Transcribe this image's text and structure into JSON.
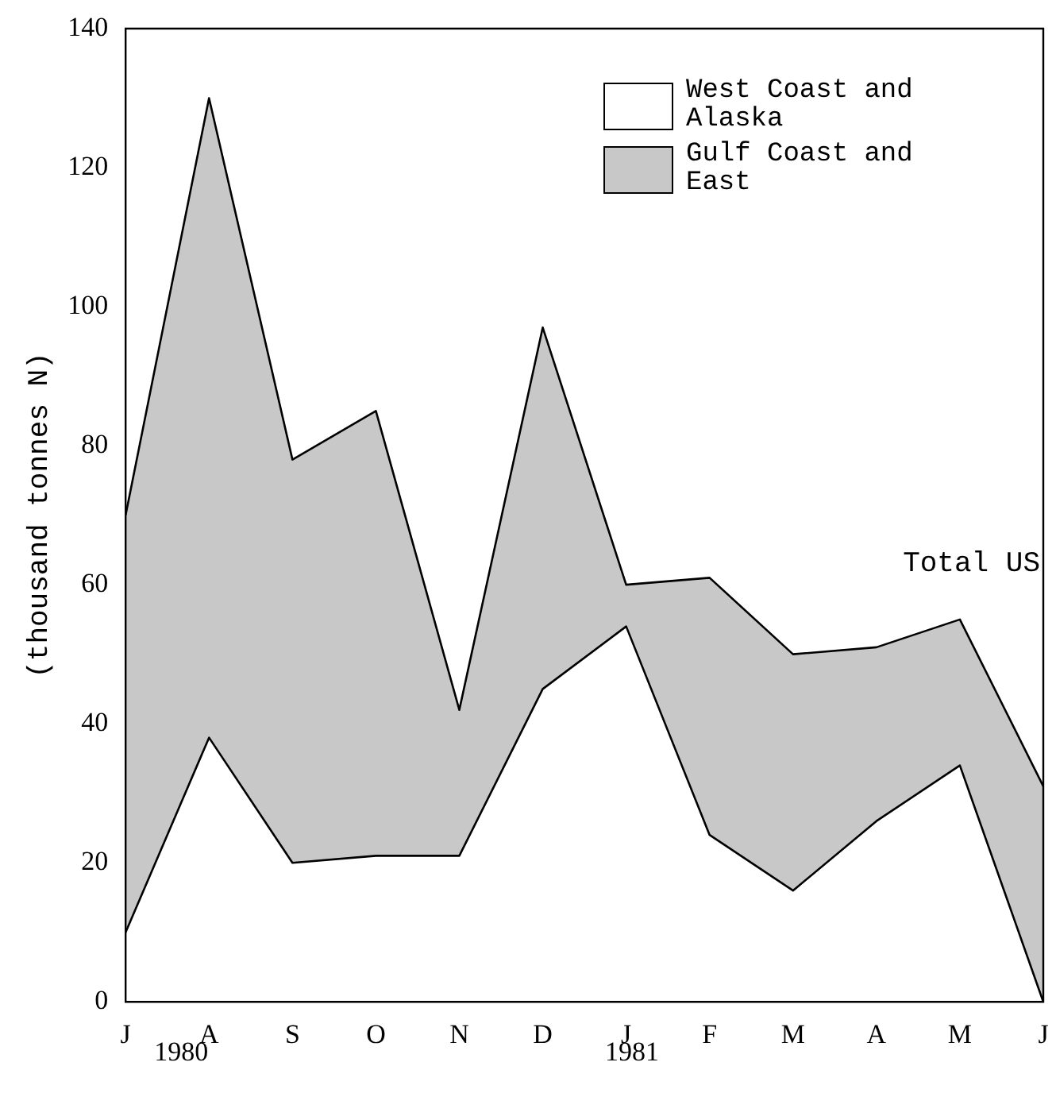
{
  "chart_data": {
    "type": "area",
    "stacked": true,
    "ylabel": "(thousand tonnes N)",
    "categories": [
      "J",
      "A",
      "S",
      "O",
      "N",
      "D",
      "J",
      "F",
      "M",
      "A",
      "M",
      "J"
    ],
    "series": [
      {
        "name": "West Coast and Alaska",
        "color": "#ffffff",
        "values": [
          10,
          38,
          20,
          21,
          21,
          45,
          54,
          24,
          16,
          26,
          34,
          0
        ]
      },
      {
        "name": "Gulf Coast and East",
        "color": "#c8c8c8",
        "values": [
          60,
          92,
          58,
          64,
          21,
          52,
          6,
          37,
          34,
          25,
          21,
          31
        ]
      }
    ],
    "ylim": [
      0,
      140
    ],
    "yticks": [
      0,
      20,
      40,
      60,
      80,
      100,
      120,
      140
    ],
    "grid": false,
    "legend": "top right",
    "marker": "none",
    "line_style": "solid",
    "annotations": [
      "1980",
      "1981",
      "Total US"
    ]
  }
}
